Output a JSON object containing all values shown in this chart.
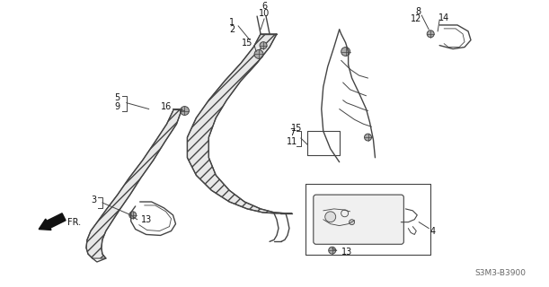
{
  "bg_color": "#ffffff",
  "line_color": "#444444",
  "diagram_code": "S3M3-B3900",
  "figsize": [
    6.11,
    3.2
  ],
  "dpi": 100
}
